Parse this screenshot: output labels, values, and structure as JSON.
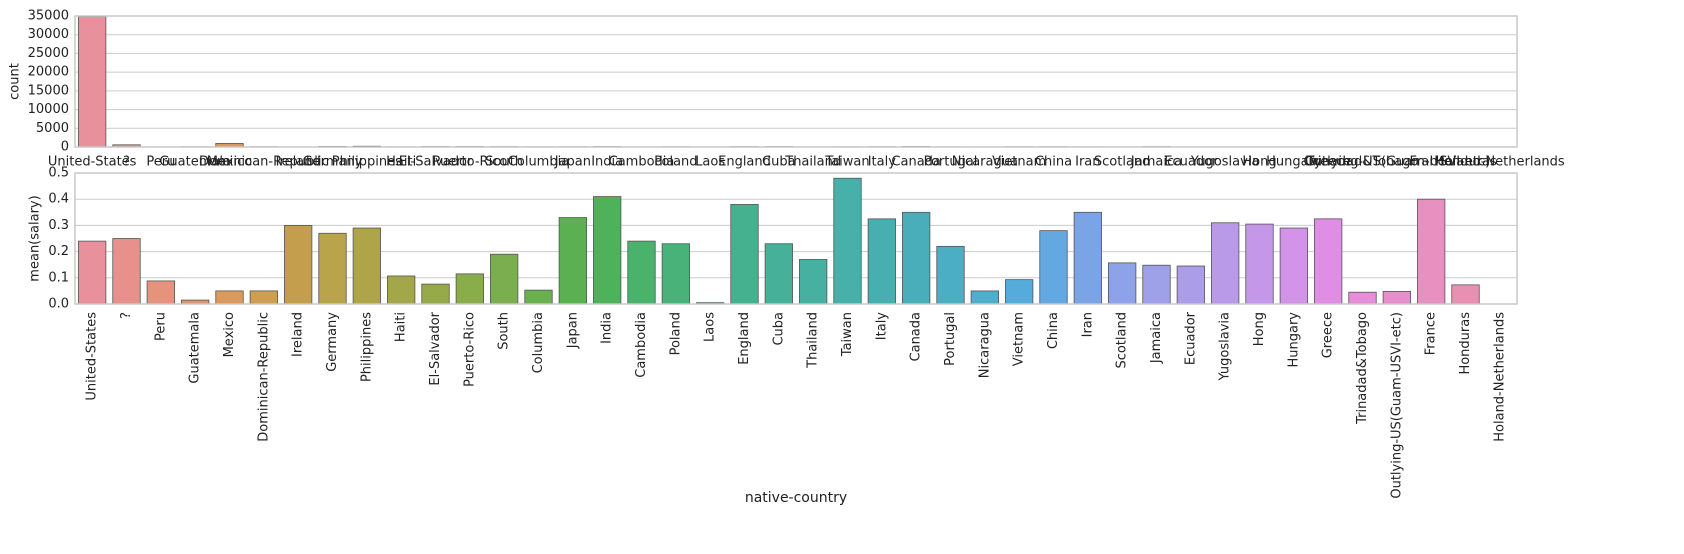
{
  "chart_data": [
    {
      "type": "bar",
      "ylabel": "count",
      "categories": [
        "United-States",
        "?",
        "Peru",
        "Guatemala",
        "Mexico",
        "Dominican-Republic",
        "Ireland",
        "Germany",
        "Philippines",
        "Haiti",
        "El-Salvador",
        "Puerto-Rico",
        "South",
        "Columbia",
        "Japan",
        "India",
        "Cambodia",
        "Poland",
        "Laos",
        "England",
        "Cuba",
        "Thailand",
        "Taiwan",
        "Italy",
        "Canada",
        "Portugal",
        "Nicaragua",
        "Vietnam",
        "China",
        "Iran",
        "Scotland",
        "Jamaica",
        "Ecuador",
        "Yugoslavia",
        "Hong",
        "Hungary",
        "Greece",
        "Trinadad&Tobago",
        "Outlying-US(Guam-USVI-etc)",
        "France",
        "Honduras",
        "Holand-Netherlands"
      ],
      "values": [
        34900,
        580,
        31,
        64,
        950,
        70,
        24,
        137,
        198,
        44,
        106,
        114,
        80,
        59,
        62,
        100,
        19,
        60,
        18,
        90,
        95,
        18,
        51,
        73,
        121,
        37,
        34,
        67,
        75,
        43,
        12,
        81,
        28,
        16,
        20,
        13,
        29,
        19,
        14,
        29,
        13,
        1
      ],
      "colors": [
        "#e8909c",
        "#e8918c",
        "#e6937d",
        "#e2956c",
        "#d99a5c",
        "#cf9e52",
        "#c49e4c",
        "#b9a34b",
        "#aea44a",
        "#a3a74a",
        "#97aa4b",
        "#8aad4c",
        "#7bae4e",
        "#6bb050",
        "#5bb052",
        "#4db25a",
        "#4ab26b",
        "#48b279",
        "#47b285",
        "#46b18f",
        "#46b198",
        "#46b0a1",
        "#47b0a9",
        "#48afb1",
        "#4aaeba",
        "#4caec3",
        "#4fadcd",
        "#55abd9",
        "#64a8e2",
        "#7aa4e6",
        "#8da2e8",
        "#9ea0e8",
        "#ac9de8",
        "#b89ae8",
        "#c497e8",
        "#d293e8",
        "#e08ee5",
        "#e68ed9",
        "#e78fcc",
        "#e890bf",
        "#e890b2",
        "#e890a6"
      ],
      "ylim": [
        0,
        35000
      ],
      "yticks": [
        0,
        5000,
        10000,
        15000,
        20000,
        25000,
        30000,
        35000
      ],
      "grid": true,
      "xlabel_rotation": 0
    },
    {
      "type": "bar",
      "ylabel": "mean(salary)",
      "xlabel": "native-country",
      "categories": [
        "United-States",
        "?",
        "Peru",
        "Guatemala",
        "Mexico",
        "Dominican-Republic",
        "Ireland",
        "Germany",
        "Philippines",
        "Haiti",
        "El-Salvador",
        "Puerto-Rico",
        "South",
        "Columbia",
        "Japan",
        "India",
        "Cambodia",
        "Poland",
        "Laos",
        "England",
        "Cuba",
        "Thailand",
        "Taiwan",
        "Italy",
        "Canada",
        "Portugal",
        "Nicaragua",
        "Vietnam",
        "China",
        "Iran",
        "Scotland",
        "Jamaica",
        "Ecuador",
        "Yugoslavia",
        "Hong",
        "Hungary",
        "Greece",
        "Trinadad&Tobago",
        "Outlying-US(Guam-USVI-etc)",
        "France",
        "Honduras",
        "Holand-Netherlands"
      ],
      "values": [
        0.24,
        0.25,
        0.088,
        0.015,
        0.05,
        0.05,
        0.3,
        0.27,
        0.29,
        0.107,
        0.076,
        0.115,
        0.19,
        0.053,
        0.33,
        0.41,
        0.24,
        0.23,
        0.005,
        0.38,
        0.23,
        0.17,
        0.48,
        0.325,
        0.35,
        0.22,
        0.05,
        0.093,
        0.28,
        0.35,
        0.157,
        0.148,
        0.145,
        0.31,
        0.305,
        0.29,
        0.325,
        0.045,
        0.048,
        0.4,
        0.073,
        0
      ],
      "colors": [
        "#e8909c",
        "#e8918c",
        "#e6937d",
        "#e2956c",
        "#d99a5c",
        "#cf9e52",
        "#c49e4c",
        "#b9a34b",
        "#aea44a",
        "#a3a74a",
        "#97aa4b",
        "#8aad4c",
        "#7bae4e",
        "#6bb050",
        "#5bb052",
        "#4db25a",
        "#4ab26b",
        "#48b279",
        "#47b285",
        "#46b18f",
        "#46b198",
        "#46b0a1",
        "#47b0a9",
        "#48afb1",
        "#4aaeba",
        "#4caec3",
        "#4fadcd",
        "#55abd9",
        "#64a8e2",
        "#7aa4e6",
        "#8da2e8",
        "#9ea0e8",
        "#ac9de8",
        "#b89ae8",
        "#c497e8",
        "#d293e8",
        "#e08ee5",
        "#e68ed9",
        "#e78fcc",
        "#e890bf",
        "#e890b2",
        "#e890a6"
      ],
      "ylim": [
        0,
        0.5
      ],
      "yticks": [
        {
          "value": 0,
          "label": "0.0"
        },
        0.1,
        0.2,
        0.3,
        0.4,
        0.5
      ],
      "grid": true,
      "xlabel_rotation": -90
    }
  ]
}
